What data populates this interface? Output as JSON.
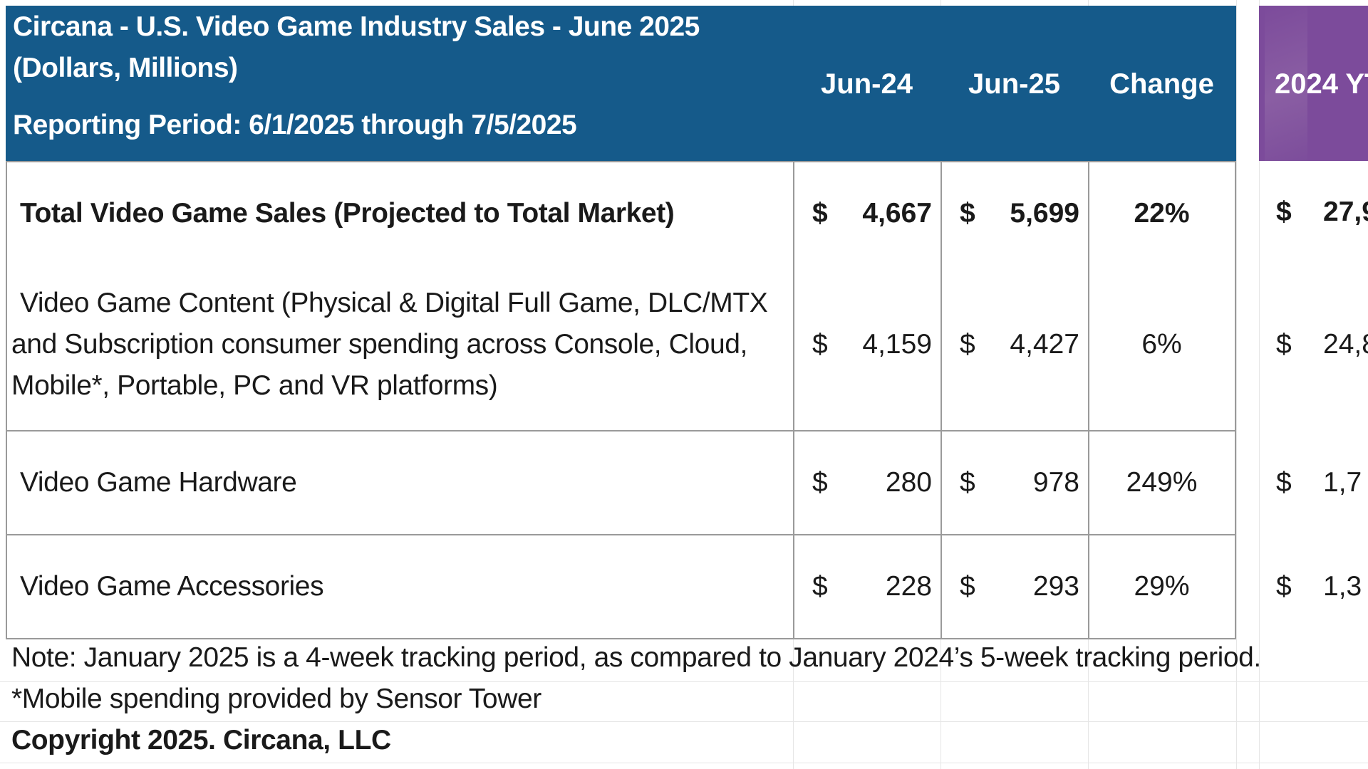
{
  "chart_data": {
    "type": "table",
    "title": "Circana - U.S. Video Game Industry Sales - June 2025",
    "subtitle": "(Dollars, Millions)",
    "reporting_period": "Reporting Period: 6/1/2025 through 7/5/2025",
    "columns": [
      "Jun-24",
      "Jun-25",
      "Change",
      "2024 YT"
    ],
    "currency_symbol": "$",
    "rows": [
      {
        "label": "Total Video Game Sales (Projected to Total Market)",
        "jun24": "4,667",
        "jun25": "5,699",
        "change": "22%",
        "ytd2024": "27,9",
        "bold": true
      },
      {
        "label_lines": [
          "Video Game Content (Physical & Digital Full Game, DLC/MTX",
          "and Subscription consumer spending across Console, Cloud,",
          "Mobile*, Portable, PC and VR platforms)"
        ],
        "jun24": "4,159",
        "jun25": "4,427",
        "change": "6%",
        "ytd2024": "24,8"
      },
      {
        "label": "Video Game Hardware",
        "jun24": "280",
        "jun25": "978",
        "change": "249%",
        "ytd2024": "1,7"
      },
      {
        "label": "Video Game Accessories",
        "jun24": "228",
        "jun25": "293",
        "change": "29%",
        "ytd2024": "1,3"
      }
    ],
    "notes": [
      "Note: January 2025 is a 4-week tracking period, as compared to January 2024’s 5-week tracking period.",
      "*Mobile spending provided by Sensor Tower"
    ],
    "copyright": "Copyright 2025. Circana, LLC",
    "colors": {
      "header_blue": "#155a8a",
      "header_purple": "#7c4b9b"
    }
  }
}
